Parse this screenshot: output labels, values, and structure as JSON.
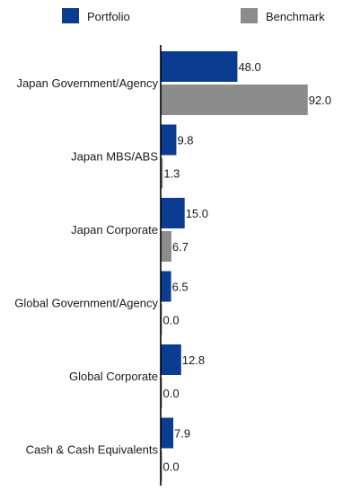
{
  "chart_data": {
    "type": "bar",
    "orientation": "horizontal",
    "categories": [
      "Japan Government/Agency",
      "Japan MBS/ABS",
      "Japan Corporate",
      "Global Government/Agency",
      "Global Corporate",
      "Cash & Cash Equivalents"
    ],
    "series": [
      {
        "name": "Portfolio",
        "color": "#0a3d91",
        "values": [
          48.0,
          9.8,
          15.0,
          6.5,
          12.8,
          7.9
        ],
        "labels": [
          "48.0",
          "9.8",
          "15.0",
          "6.5",
          "12.8",
          "7.9"
        ]
      },
      {
        "name": "Benchmark",
        "color": "#8c8c8c",
        "values": [
          92.0,
          1.3,
          6.7,
          0.0,
          0.0,
          0.0
        ],
        "labels": [
          "92.0",
          "1.3",
          "6.7",
          "0.0",
          "0.0",
          "0.0"
        ]
      }
    ],
    "legend": "top",
    "grid": false,
    "xlim": [
      0,
      100
    ]
  }
}
